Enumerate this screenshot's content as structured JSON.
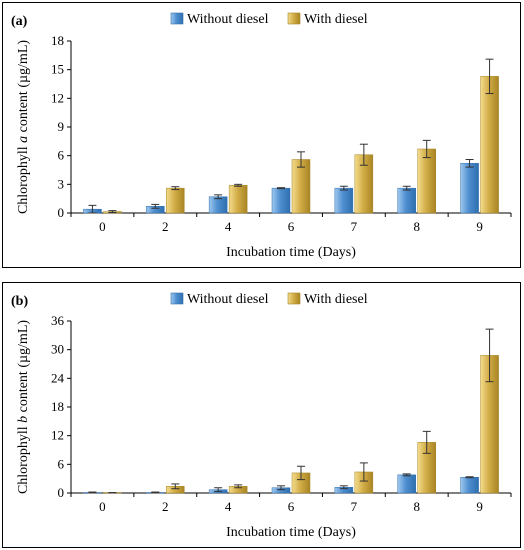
{
  "chart_data": [
    {
      "type": "bar",
      "panel_label": "(a)",
      "ylabel_pre": "Chlorophyll ",
      "ylabel_italic": "a",
      "ylabel_post": " content (µg/mL)",
      "xlabel": "Incubation time (Days)",
      "categories": [
        "0",
        "2",
        "4",
        "6",
        "7",
        "8",
        "9"
      ],
      "ylim": [
        0,
        18
      ],
      "yticks": [
        0,
        3,
        6,
        9,
        12,
        15,
        18
      ],
      "legend_position": "top-center",
      "series": [
        {
          "name": "Without diesel",
          "color": "#5b9bd5",
          "values": [
            0.4,
            0.7,
            1.7,
            2.6,
            2.6,
            2.6,
            5.2
          ],
          "errors": [
            0.4,
            0.2,
            0.2,
            0.05,
            0.2,
            0.2,
            0.4
          ]
        },
        {
          "name": "With diesel",
          "color": "#d4b04c",
          "values": [
            0.15,
            2.6,
            2.9,
            5.6,
            6.1,
            6.7,
            14.3
          ],
          "errors": [
            0.1,
            0.15,
            0.1,
            0.8,
            1.1,
            0.9,
            1.8
          ]
        }
      ]
    },
    {
      "type": "bar",
      "panel_label": "(b)",
      "ylabel_pre": "Chlorophyll ",
      "ylabel_italic": "b",
      "ylabel_post": " content (µg/mL)",
      "xlabel": "Incubation time (Days)",
      "categories": [
        "0",
        "2",
        "4",
        "6",
        "7",
        "8",
        "9"
      ],
      "ylim": [
        0,
        36
      ],
      "yticks": [
        0,
        6,
        12,
        18,
        24,
        30,
        36
      ],
      "legend_position": "top-center",
      "series": [
        {
          "name": "Without diesel",
          "color": "#5b9bd5",
          "values": [
            0.1,
            0.1,
            0.7,
            1.1,
            1.2,
            3.8,
            3.3
          ],
          "errors": [
            0.1,
            0.1,
            0.4,
            0.4,
            0.3,
            0.2,
            0.1
          ]
        },
        {
          "name": "With diesel",
          "color": "#d4b04c",
          "values": [
            0.05,
            1.4,
            1.4,
            4.2,
            4.4,
            10.6,
            28.8
          ],
          "errors": [
            0.05,
            0.5,
            0.3,
            1.4,
            1.9,
            2.3,
            5.5
          ]
        }
      ]
    }
  ]
}
